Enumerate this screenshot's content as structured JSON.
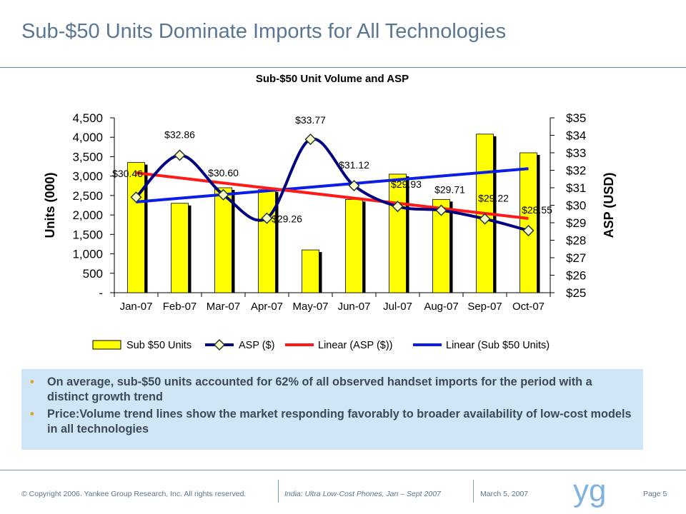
{
  "page_title": "Sub-$50 Units Dominate Imports for All Technologies",
  "colors": {
    "title": "#5a7690",
    "bar_fill": "#ffff00",
    "bar_shadow": "#000000",
    "asp_line": "#000080",
    "marker_fill": "#ffffcc",
    "marker_stroke": "#1f3b2a",
    "linear_asp": "#ff1a1a",
    "linear_units": "#0a1ee6",
    "bullet_box": "#cfe6f7",
    "bullet_dot": "#e6a020"
  },
  "chart_data": {
    "type": "bar",
    "title": "Sub-$50 Unit Volume and ASP",
    "categories": [
      "Jan-07",
      "Feb-07",
      "Mar-07",
      "Apr-07",
      "May-07",
      "Jun-07",
      "Jul-07",
      "Aug-07",
      "Sep-07",
      "Oct-07"
    ],
    "xlabel": "",
    "ylabel": "Units (000)",
    "ylim": [
      0,
      4500
    ],
    "y_ticks": [
      "-",
      "500",
      "1,000",
      "1,500",
      "2,000",
      "2,500",
      "3,000",
      "3,500",
      "4,000",
      "4,500"
    ],
    "y2label": "ASP (USD)",
    "y2lim": [
      25,
      35
    ],
    "y2_ticks": [
      "$25",
      "$26",
      "$27",
      "$28",
      "$29",
      "$30",
      "$31",
      "$32",
      "$33",
      "$34",
      "$35"
    ],
    "grid": false,
    "legend_position": "bottom",
    "series": [
      {
        "name": "Sub $50 Units",
        "type": "bar",
        "axis": "left",
        "values": [
          3350,
          2300,
          2700,
          2650,
          1100,
          2400,
          3050,
          2400,
          4080,
          3600
        ]
      },
      {
        "name": "ASP ($)",
        "type": "line",
        "axis": "right",
        "smooth": true,
        "marker": "diamond",
        "values": [
          30.46,
          32.86,
          30.6,
          29.26,
          33.77,
          31.12,
          29.93,
          29.71,
          29.22,
          28.55
        ],
        "data_labels": [
          "$30.46",
          "$32.86",
          "$30.60",
          "$29.26",
          "$33.77",
          "$31.12",
          "$29.93",
          "$29.71",
          "$29.22",
          "$28.55"
        ]
      },
      {
        "name": "Linear (ASP ($))",
        "type": "trendline",
        "axis": "right",
        "of": "ASP ($)"
      },
      {
        "name": "Linear (Sub $50 Units)",
        "type": "trendline",
        "axis": "left",
        "of": "Sub $50 Units"
      }
    ]
  },
  "bullets": [
    "On average, sub-$50 units accounted for 62% of all observed handset imports for the period with a distinct growth trend",
    "Price:Volume trend lines show the market responding favorably to broader availability of low-cost models in all technologies"
  ],
  "bullet_marker": "•",
  "footer": {
    "copyright": "© Copyright 2006. Yankee Group Research, Inc. All rights reserved.",
    "report": "India: Ultra Low-Cost Phones, Jan – Sept 2007",
    "date": "March 5, 2007",
    "page": "Page 5",
    "logo_text": "yg",
    "logo_icon": "yankee-group-logo"
  }
}
